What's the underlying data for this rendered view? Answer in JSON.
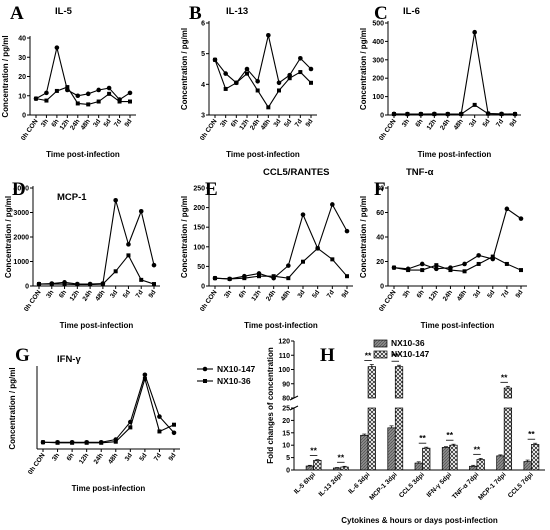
{
  "chart_data": [
    {
      "type": "line",
      "panel": "A",
      "title": "IL-5",
      "xlabel": "Time post-infection",
      "ylabel": "Concentration / pg/ml",
      "categories": [
        "0h CON",
        "3h",
        "6h",
        "12h",
        "24h",
        "48h",
        "3d",
        "5d",
        "7d",
        "9d"
      ],
      "ylim": [
        0,
        40
      ],
      "yticks": [
        0,
        10,
        20,
        30,
        40
      ],
      "series": [
        {
          "marker": "circle",
          "values": [
            8.5,
            11.5,
            35,
            13,
            10,
            11,
            13,
            14,
            8,
            11.5
          ]
        },
        {
          "marker": "square",
          "values": [
            8.5,
            7.5,
            12.5,
            14.5,
            6,
            5.5,
            7,
            11,
            7,
            7
          ]
        }
      ]
    },
    {
      "type": "line",
      "panel": "B",
      "title": "IL-13",
      "xlabel": "Time post-infection",
      "ylabel": "Concentration / pg/ml",
      "categories": [
        "0h CON",
        "3h",
        "6h",
        "12h",
        "24h",
        "48h",
        "3d",
        "5d",
        "7d",
        "9d"
      ],
      "ylim": [
        3,
        6
      ],
      "yticks": [
        3,
        4,
        5,
        6
      ],
      "series": [
        {
          "marker": "circle",
          "values": [
            4.8,
            4.35,
            4.05,
            4.5,
            4.1,
            5.6,
            4.05,
            4.3,
            4.85,
            4.5
          ]
        },
        {
          "marker": "square",
          "values": [
            4.8,
            3.85,
            4.05,
            4.35,
            3.8,
            3.25,
            3.8,
            4.2,
            4.4,
            4.05
          ]
        }
      ]
    },
    {
      "type": "line",
      "panel": "C",
      "title": "IL-6",
      "xlabel": "Time post-infection",
      "ylabel": "Concentration / pg/ml",
      "categories": [
        "0h CON",
        "3h",
        "6h",
        "12h",
        "24h",
        "48h",
        "3d",
        "5d",
        "7d",
        "9d"
      ],
      "ylim": [
        0,
        500
      ],
      "yticks": [
        0,
        100,
        200,
        300,
        400,
        500
      ],
      "series": [
        {
          "marker": "circle",
          "values": [
            6,
            5,
            5,
            6,
            5,
            6,
            450,
            8,
            6,
            5
          ]
        },
        {
          "marker": "square",
          "values": [
            5,
            5,
            5,
            5,
            5,
            5,
            55,
            7,
            5,
            5
          ]
        }
      ]
    },
    {
      "type": "line",
      "panel": "D",
      "title": "MCP-1",
      "xlabel": "Time post-infection",
      "ylabel": "Concentration / pg/ml",
      "categories": [
        "0h CON",
        "3h",
        "6h",
        "12h",
        "24h",
        "48h",
        "3d",
        "5d",
        "7d",
        "9d"
      ],
      "ylim": [
        0,
        4000
      ],
      "yticks": [
        0,
        1000,
        2000,
        3000,
        4000
      ],
      "series": [
        {
          "marker": "circle",
          "values": [
            80,
            100,
            150,
            80,
            80,
            100,
            3500,
            1700,
            3050,
            850
          ]
        },
        {
          "marker": "square",
          "values": [
            80,
            80,
            80,
            60,
            60,
            80,
            600,
            1250,
            250,
            80
          ]
        }
      ]
    },
    {
      "type": "line",
      "panel": "E",
      "title": "CCL5/RANTES",
      "xlabel": "Time post-infection",
      "ylabel": "Concentration / pg/ml",
      "categories": [
        "0h CON",
        "3h",
        "6h",
        "12h",
        "24h",
        "48h",
        "3d",
        "5d",
        "7d",
        "9d"
      ],
      "ylim": [
        0,
        250
      ],
      "yticks": [
        0,
        50,
        100,
        150,
        200,
        250
      ],
      "series": [
        {
          "marker": "circle",
          "values": [
            20,
            18,
            25,
            32,
            20,
            52,
            182,
            96,
            208,
            140
          ]
        },
        {
          "marker": "square",
          "values": [
            20,
            18,
            20,
            25,
            25,
            20,
            62,
            96,
            68,
            25
          ]
        }
      ]
    },
    {
      "type": "line",
      "panel": "F",
      "title": "TNF-α",
      "xlabel": "Time post-infection",
      "ylabel": "Concentration / pg/ml",
      "categories": [
        "0h CON",
        "3h",
        "6h",
        "12h",
        "24h",
        "48h",
        "3d",
        "5d",
        "7d",
        "9d"
      ],
      "ylim": [
        0,
        80
      ],
      "yticks": [
        0,
        20,
        40,
        60,
        80
      ],
      "series": [
        {
          "marker": "circle",
          "values": [
            15,
            14,
            18,
            14,
            15,
            18,
            25,
            22,
            63,
            55
          ]
        },
        {
          "marker": "square",
          "values": [
            15,
            13,
            13,
            17,
            13,
            12,
            18,
            24,
            18,
            13
          ]
        }
      ]
    },
    {
      "type": "line",
      "panel": "G",
      "title": "IFN-γ",
      "xlabel": "Time post-infection",
      "ylabel": "Concentration / pg/ml",
      "categories": [
        "0h CON",
        "3h",
        "6h",
        "12h",
        "24h",
        "48h",
        "3d",
        "5d",
        "7d",
        "9d"
      ],
      "ylim": [
        0,
        30
      ],
      "legend": "right",
      "series": [
        {
          "name": "NX10-147",
          "marker": "circle",
          "values": [
            2.5,
            2.5,
            2.5,
            2.5,
            2.5,
            3.5,
            10,
            27.5,
            12,
            6
          ]
        },
        {
          "name": "NX10-36",
          "marker": "square",
          "values": [
            2.5,
            2.3,
            2.3,
            2.3,
            2.3,
            2.7,
            8,
            26,
            6.5,
            9
          ]
        }
      ]
    },
    {
      "type": "bar",
      "panel": "H",
      "xlabel": "Cytokines & hours or days post-infection",
      "ylabel": "Fold changes of concentration",
      "categories": [
        "IL-5 6hpi",
        "IL-13 2dpi",
        "IL-6 3dpi",
        "MCP-1 3dpi",
        "CCL5 3dpi",
        "IFN-γ 5dpi",
        "TNF-α 7dpi",
        "MCP-1 7dpi",
        "CCL5 7dpi"
      ],
      "axis_break": {
        "lower": [
          0,
          25
        ],
        "upper": [
          80,
          120
        ]
      },
      "yticks_lower": [
        0,
        5,
        10,
        15,
        20,
        25
      ],
      "yticks_upper": [
        80,
        90,
        100,
        110,
        120
      ],
      "legend": "top-right",
      "significance": "**",
      "series": [
        {
          "name": "NX10-36",
          "pattern": "grey-hatched",
          "values": [
            1.6,
            0.8,
            14,
            17,
            2.8,
            9.1,
            1.5,
            5.7,
            3.4
          ],
          "errors": [
            0.3,
            0.2,
            0.5,
            0.8,
            0.5,
            0.3,
            0.4,
            0.4,
            0.6
          ]
        },
        {
          "name": "NX10-147",
          "pattern": "crosshatched",
          "values": [
            3.9,
            1.2,
            102,
            102,
            8.8,
            10,
            4.2,
            87,
            10.3
          ],
          "errors": [
            0.3,
            0.3,
            1.5,
            1.0,
            0.4,
            0.4,
            0.5,
            1.2,
            0.5
          ]
        }
      ]
    }
  ]
}
